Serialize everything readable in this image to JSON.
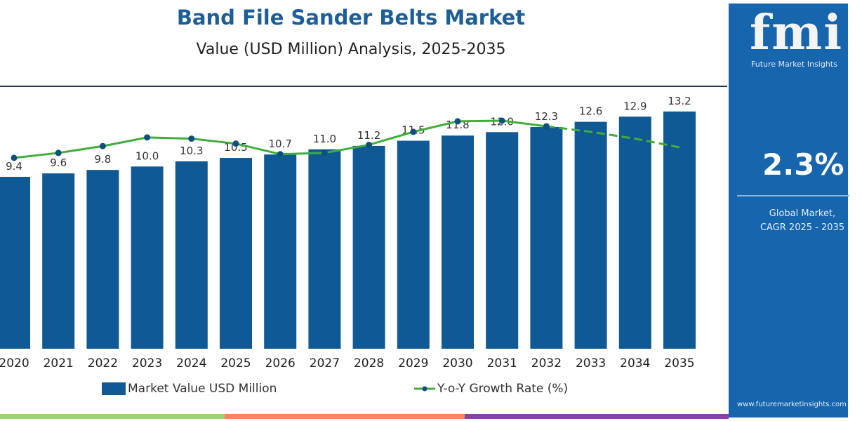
{
  "title": "Band File Sander Belts Market",
  "subtitle": "Value (USD Million) Analysis, 2025-2035",
  "panel": {
    "logo": "fmi",
    "logo_sub": "Future Market Insights",
    "cagr": "2.3%",
    "cagr_label_1": "Global Market,",
    "cagr_label_2": "CAGR 2025 - 2035",
    "url": "www.futuremarketinsights.com"
  },
  "colors": {
    "bar": "#0f5a94",
    "line": "#3fae3a",
    "marker": "#0f4f80",
    "panel": "#1665ad",
    "strip": [
      "#9fd36f",
      "#f08a5d",
      "#8e3fae"
    ]
  },
  "chart_data": {
    "type": "bar+line",
    "categories": [
      "2020",
      "2021",
      "2022",
      "2023",
      "2024",
      "2025",
      "2026",
      "2027",
      "2028",
      "2029",
      "2030",
      "2031",
      "2032",
      "2033",
      "2034",
      "2035"
    ],
    "series": [
      {
        "name": "Market Value USD Million",
        "type": "bar",
        "values": [
          9.4,
          9.6,
          9.8,
          10.0,
          10.3,
          10.5,
          10.7,
          11.0,
          11.2,
          11.5,
          11.8,
          12.0,
          12.3,
          12.6,
          12.9,
          13.2
        ]
      },
      {
        "name": "Y-o-Y Growth Rate (%)",
        "type": "line",
        "values": [
          2.0,
          2.08,
          2.19,
          2.33,
          2.31,
          2.23,
          2.06,
          2.08,
          2.21,
          2.42,
          2.59,
          2.6,
          2.51,
          2.42,
          2.31,
          2.17
        ],
        "dashed_from": "2032"
      }
    ],
    "data_labels": [
      "9.4",
      "9.6",
      "9.8",
      "10.0",
      "10.3",
      "10.5",
      "10.7",
      "11.0",
      "11.2",
      "11.5",
      "11.8",
      "12.0",
      "12.3",
      "12.6",
      "12.9",
      "13.2"
    ],
    "legend": "bottom",
    "grid": false
  }
}
